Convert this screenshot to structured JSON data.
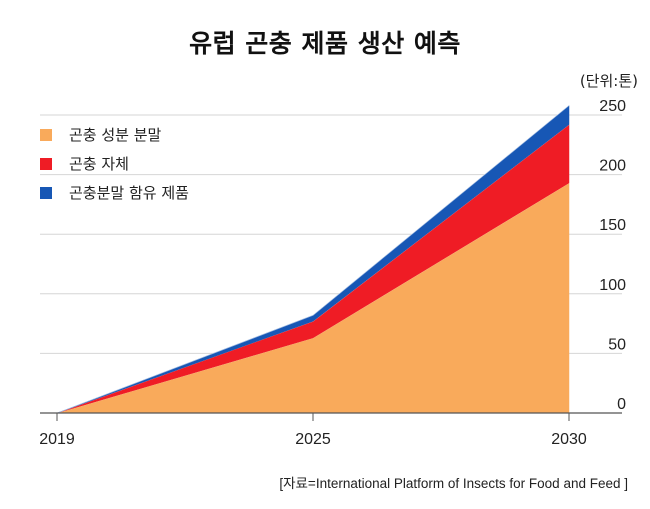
{
  "title": "유럽 곤충 제품 생산 예측",
  "unit": "(단위:톤)",
  "source": "[자료=International Platform of Insects for Food and Feed ]",
  "chart_data": {
    "type": "area",
    "stacked": true,
    "x": [
      "2019",
      "2025",
      "2030"
    ],
    "ylim": [
      0,
      250
    ],
    "yticks": [
      "0",
      "50",
      "100",
      "150",
      "200",
      "250"
    ],
    "grid": true,
    "legend_position": "top-left",
    "series": [
      {
        "name": "곤충 성분 분말",
        "color": "#F9AA5B",
        "values": [
          0,
          63,
          193
        ]
      },
      {
        "name": "곤충 자체",
        "color": "#EF1C25",
        "values": [
          0,
          14,
          49
        ]
      },
      {
        "name": "곤충분말 함유 제품",
        "color": "#1757B5",
        "values": [
          0,
          5,
          16
        ]
      }
    ]
  }
}
